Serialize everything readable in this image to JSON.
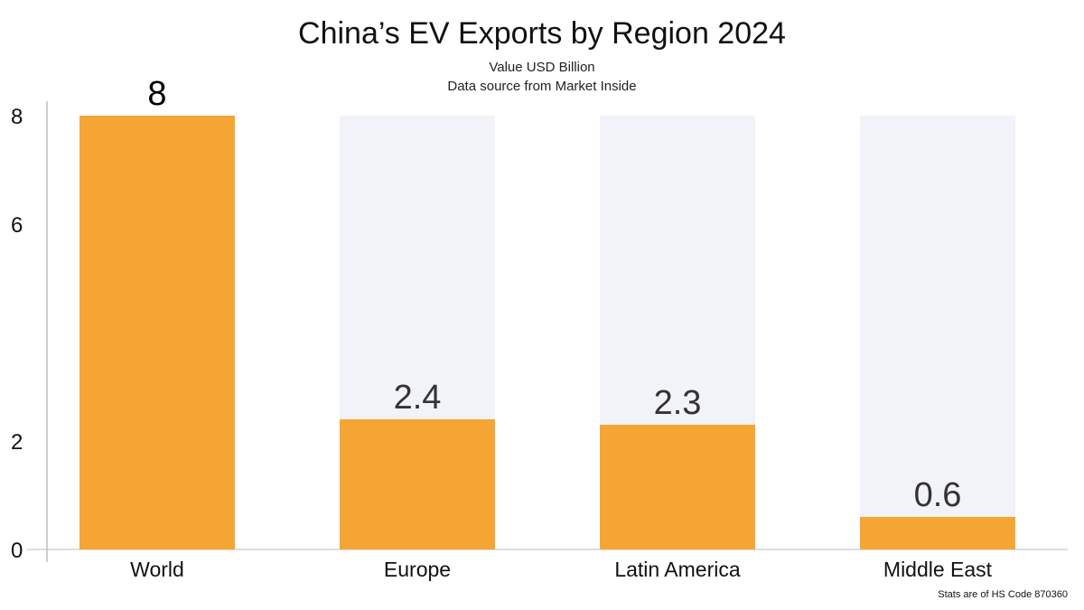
{
  "chart_data": {
    "type": "bar",
    "title": "China’s EV Exports by Region 2024",
    "subtitle": "Value USD Billion",
    "source": "Data source from Market Inside",
    "footnote": "Stats are of HS Code 870360",
    "categories": [
      "World",
      "Europe",
      "Latin America",
      "Middle East"
    ],
    "values": [
      8,
      2.4,
      2.3,
      0.6
    ],
    "data_labels": [
      "8",
      "2.4",
      "2.3",
      "0.6"
    ],
    "yticks": [
      0,
      2,
      6,
      8
    ],
    "ylim": [
      0,
      8
    ],
    "xlabel": "",
    "ylabel": "",
    "grid": false,
    "colors": {
      "bar": "#F5A533",
      "track": "#F2F3F8",
      "axis": "#BDBDBD",
      "label": "#333333"
    }
  }
}
